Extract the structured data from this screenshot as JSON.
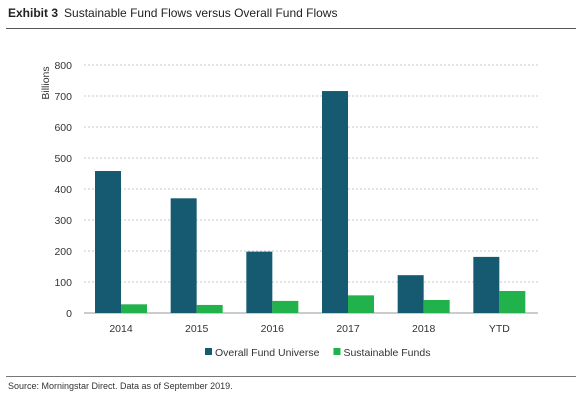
{
  "header": {
    "exhibit_label": "Exhibit 3",
    "title": "Sustainable Fund Flows versus Overall Fund Flows"
  },
  "footer": {
    "source": "Source: Morningstar Direct. Data as of September 2019."
  },
  "chart_data": {
    "type": "bar",
    "title": "Sustainable Fund Flows versus Overall Fund Flows",
    "xlabel": "",
    "ylabel": "Billions",
    "ylim": [
      0,
      800
    ],
    "yticks": [
      "0",
      "100",
      "200",
      "300",
      "400",
      "500",
      "600",
      "700",
      "800"
    ],
    "grid": true,
    "legend_position": "bottom",
    "categories": [
      "2014",
      "2015",
      "2016",
      "2017",
      "2018",
      "YTD"
    ],
    "series": [
      {
        "name": "Overall Fund Universe",
        "color": "#155a70",
        "values": [
          458,
          370,
          198,
          716,
          122,
          181
        ]
      },
      {
        "name": "Sustainable Funds",
        "color": "#21b24b",
        "values": [
          28,
          26,
          39,
          57,
          42,
          71
        ]
      }
    ]
  }
}
